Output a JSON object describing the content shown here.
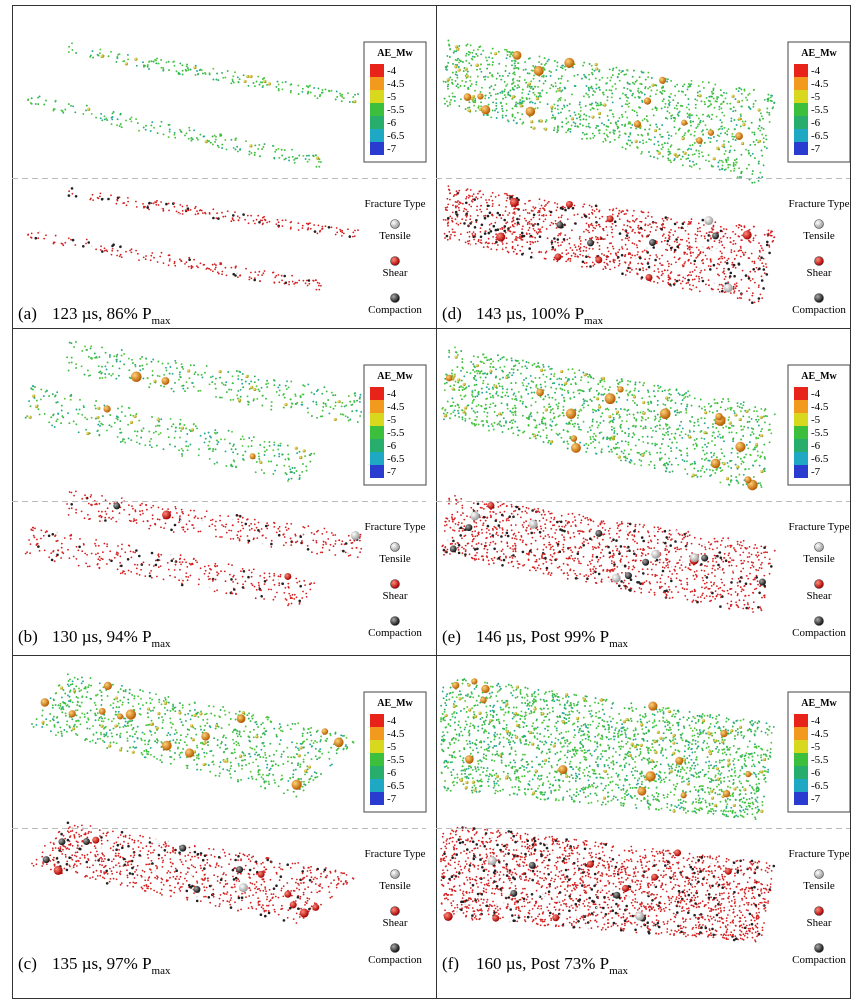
{
  "colorbar": {
    "title": "AE_Mw",
    "labels": [
      "-4",
      "-4.5",
      "-5",
      "-5.5",
      "-6",
      "-6.5",
      "-7"
    ]
  },
  "fracture_legend": {
    "title": "Fracture Type",
    "items": [
      "Tensile",
      "Shear",
      "Compaction"
    ]
  },
  "panels": [
    {
      "label": "(a)",
      "caption": "123 µs, 86% P",
      "subscript": "max"
    },
    {
      "label": "(b)",
      "caption": "130 µs, 94% P",
      "subscript": "max"
    },
    {
      "label": "(c)",
      "caption": "135 µs, 97% P",
      "subscript": "max"
    },
    {
      "label": "(d)",
      "caption": "143 µs, 100% P",
      "subscript": "max"
    },
    {
      "label": "(e)",
      "caption": "146 µs, Post 99% P",
      "subscript": "max"
    },
    {
      "label": "(f)",
      "caption": "160 µs, Post 73% P",
      "subscript": "max"
    }
  ]
}
